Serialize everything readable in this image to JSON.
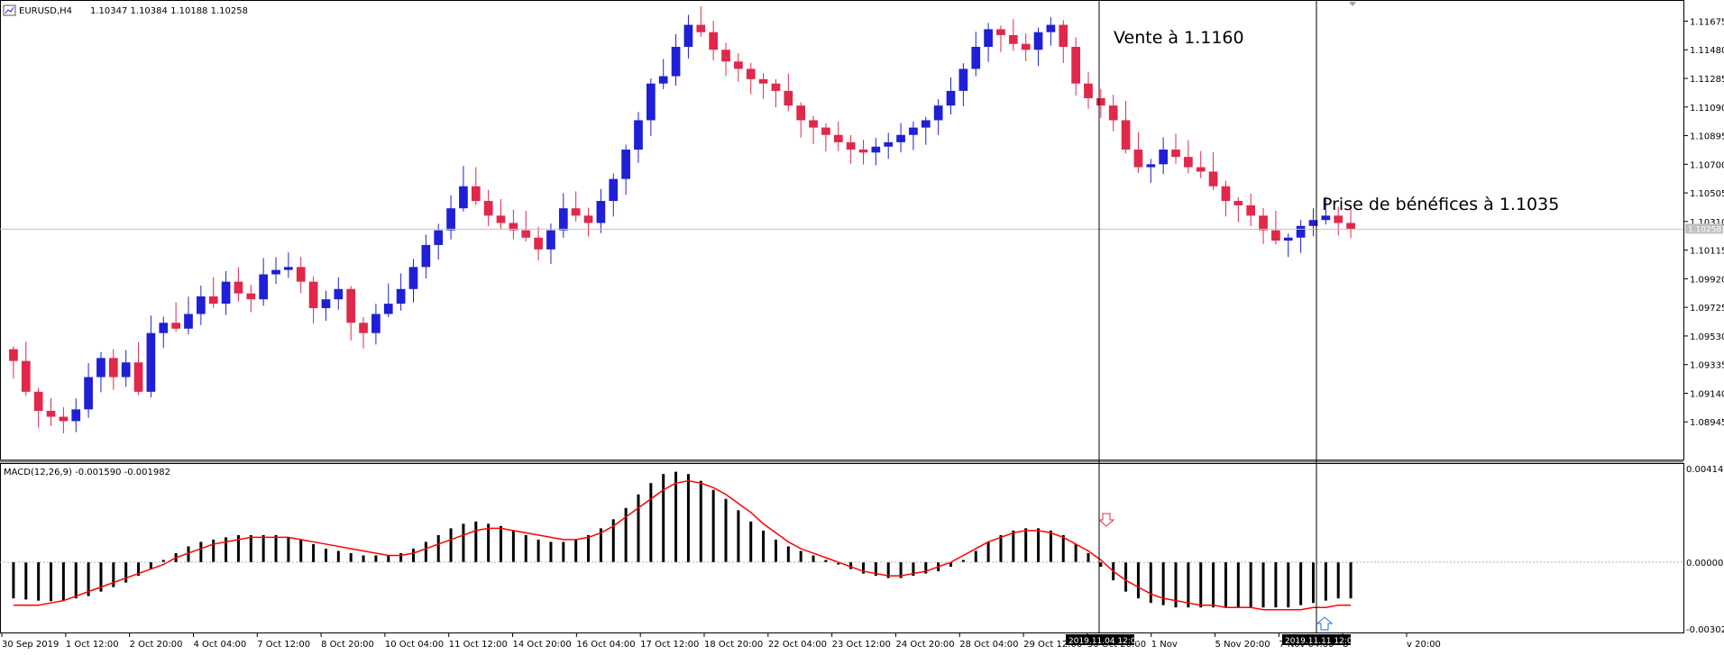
{
  "window": {
    "title": "EURUSD,H4",
    "ohlc": "1.10347 1.10384 1.10188 1.10258",
    "indicator_title": "MACD(12,26,9) -0.001590 -0.001982"
  },
  "annotations": {
    "sell": "Vente à 1.1160",
    "take_profit": "Prise de bénéfices à 1.1035"
  },
  "markers": {
    "sell_time": "2019.11.04 12:00",
    "tp_time": "2019.11.11 12:00",
    "current_price": "1.10258"
  },
  "colors": {
    "bull": "#1f1fd6",
    "bear": "#e0284a",
    "signal": "#ff0000",
    "histogram": "#000000",
    "grid_line": "#c0c0c0",
    "vline": "#000000",
    "sell_arrow": "#e0284a",
    "buy_arrow": "#1f6fd6"
  },
  "chart_data": [
    {
      "type": "candlestick",
      "symbol": "EURUSD",
      "timeframe": "H4",
      "ylim": [
        1.0875,
        1.1177
      ],
      "y_ticks": [
        "1.11675",
        "1.11480",
        "1.11285",
        "1.11090",
        "1.10895",
        "1.10700",
        "1.10505",
        "1.10310",
        "1.10115",
        "1.09920",
        "1.09725",
        "1.09530",
        "1.09335",
        "1.09140",
        "1.08945"
      ],
      "x_ticks": [
        "30 Sep 2019",
        "1 Oct 12:00",
        "2 Oct 20:00",
        "4 Oct 04:00",
        "7 Oct 12:00",
        "8 Oct 20:00",
        "10 Oct 04:00",
        "11 Oct 12:00",
        "14 Oct 20:00",
        "16 Oct 04:00",
        "17 Oct 12:00",
        "18 Oct 20:00",
        "22 Oct 04:00",
        "23 Oct 12:00",
        "24 Oct 20:00",
        "28 Oct 04:00",
        "29 Oct 12:00",
        "30 Oct 20:00",
        "1 Nov",
        "5 Nov 20:00",
        "7 Nov 04:00",
        "8",
        "v 20:00"
      ],
      "close_path": [
        1.0936,
        1.0915,
        1.0902,
        1.0898,
        1.0895,
        1.0903,
        1.0925,
        1.0938,
        1.0925,
        1.0935,
        1.0915,
        1.0955,
        1.0962,
        1.0958,
        1.0968,
        1.098,
        1.0975,
        1.099,
        1.0982,
        1.0978,
        1.0995,
        1.0998,
        1.1,
        1.099,
        1.0972,
        1.0978,
        1.0985,
        1.0962,
        1.0955,
        1.0968,
        1.0975,
        1.0985,
        1.1,
        1.1015,
        1.1025,
        1.104,
        1.1055,
        1.1045,
        1.1035,
        1.103,
        1.1025,
        1.102,
        1.1012,
        1.1025,
        1.104,
        1.1035,
        1.103,
        1.1045,
        1.106,
        1.108,
        1.11,
        1.1125,
        1.113,
        1.115,
        1.1165,
        1.116,
        1.1148,
        1.114,
        1.1135,
        1.1128,
        1.1125,
        1.112,
        1.111,
        1.11,
        1.1095,
        1.109,
        1.1085,
        1.108,
        1.1078,
        1.1082,
        1.1085,
        1.109,
        1.1095,
        1.11,
        1.111,
        1.112,
        1.1135,
        1.115,
        1.1162,
        1.1158,
        1.1152,
        1.1148,
        1.116,
        1.1165,
        1.115,
        1.1125,
        1.1115,
        1.111,
        1.11,
        1.108,
        1.1068,
        1.107,
        1.108,
        1.1075,
        1.1068,
        1.1065,
        1.1055,
        1.1045,
        1.1042,
        1.1035,
        1.1025,
        1.1018,
        1.102,
        1.1028,
        1.1032,
        1.1035,
        1.103,
        1.1026
      ],
      "y_current": 1.10258,
      "sell_level": 1.116,
      "take_profit_level": 1.1035
    },
    {
      "type": "bar",
      "name": "MACD(12,26,9)",
      "values_summary": [
        -0.00159,
        -0.001982
      ],
      "ylim": [
        -0.003028,
        0.004145
      ],
      "y_ticks": [
        "0.004145",
        "0.000000",
        "-0.003028"
      ],
      "histogram": [
        -0.0016,
        -0.00165,
        -0.0017,
        -0.00172,
        -0.0017,
        -0.0016,
        -0.0015,
        -0.0013,
        -0.0011,
        -0.0009,
        -0.0006,
        -0.0003,
        0.0001,
        0.0004,
        0.0007,
        0.0009,
        0.001,
        0.0011,
        0.0012,
        0.0012,
        0.0012,
        0.0012,
        0.0011,
        0.001,
        0.0008,
        0.0006,
        0.0005,
        0.0004,
        0.0003,
        0.0003,
        0.0003,
        0.0004,
        0.0006,
        0.0009,
        0.0012,
        0.0015,
        0.0017,
        0.0018,
        0.0017,
        0.0016,
        0.0014,
        0.0012,
        0.001,
        0.0009,
        0.0009,
        0.001,
        0.0012,
        0.0015,
        0.0019,
        0.0024,
        0.003,
        0.0035,
        0.0039,
        0.004,
        0.0039,
        0.0036,
        0.0032,
        0.0028,
        0.0023,
        0.0018,
        0.0014,
        0.001,
        0.0007,
        0.0005,
        0.0003,
        0.0001,
        -0.0001,
        -0.0003,
        -0.0005,
        -0.0006,
        -0.0007,
        -0.0007,
        -0.0006,
        -0.0005,
        -0.0004,
        -0.0002,
        0.0001,
        0.0005,
        0.0009,
        0.0012,
        0.0014,
        0.0015,
        0.0015,
        0.0014,
        0.0012,
        0.0008,
        0.0004,
        -0.0002,
        -0.0008,
        -0.0013,
        -0.0016,
        -0.0018,
        -0.0019,
        -0.002,
        -0.002,
        -0.002,
        -0.002,
        -0.002,
        -0.002,
        -0.002,
        -0.002,
        -0.002,
        -0.002,
        -0.0019,
        -0.0018,
        -0.0017,
        -0.0016,
        -0.0016
      ],
      "signal": [
        -0.0019,
        -0.0019,
        -0.0019,
        -0.0018,
        -0.0017,
        -0.0015,
        -0.0013,
        -0.0011,
        -0.0009,
        -0.0007,
        -0.0005,
        -0.0003,
        -0.0001,
        0.0002,
        0.0004,
        0.0006,
        0.0008,
        0.0009,
        0.001,
        0.0011,
        0.0011,
        0.0011,
        0.0011,
        0.001,
        0.0009,
        0.0008,
        0.0007,
        0.0006,
        0.0005,
        0.0004,
        0.0003,
        0.0003,
        0.0004,
        0.0006,
        0.0008,
        0.001,
        0.0012,
        0.0014,
        0.0015,
        0.0015,
        0.0014,
        0.0013,
        0.0012,
        0.0011,
        0.001,
        0.001,
        0.0011,
        0.0013,
        0.0016,
        0.002,
        0.0024,
        0.0028,
        0.0032,
        0.0035,
        0.0036,
        0.0035,
        0.0033,
        0.003,
        0.0026,
        0.0022,
        0.0017,
        0.0013,
        0.0009,
        0.0006,
        0.0004,
        0.0002,
        0.0,
        -0.0002,
        -0.0004,
        -0.0005,
        -0.0006,
        -0.0006,
        -0.0005,
        -0.0004,
        -0.0002,
        0.0,
        0.0003,
        0.0006,
        0.0009,
        0.0011,
        0.0013,
        0.0014,
        0.0014,
        0.0013,
        0.0011,
        0.0008,
        0.0005,
        0.0001,
        -0.0004,
        -0.0008,
        -0.0011,
        -0.0014,
        -0.0016,
        -0.0017,
        -0.0018,
        -0.0019,
        -0.0019,
        -0.002,
        -0.002,
        -0.002,
        -0.0021,
        -0.0021,
        -0.0021,
        -0.0021,
        -0.002,
        -0.002,
        -0.0019,
        -0.0019
      ]
    }
  ]
}
